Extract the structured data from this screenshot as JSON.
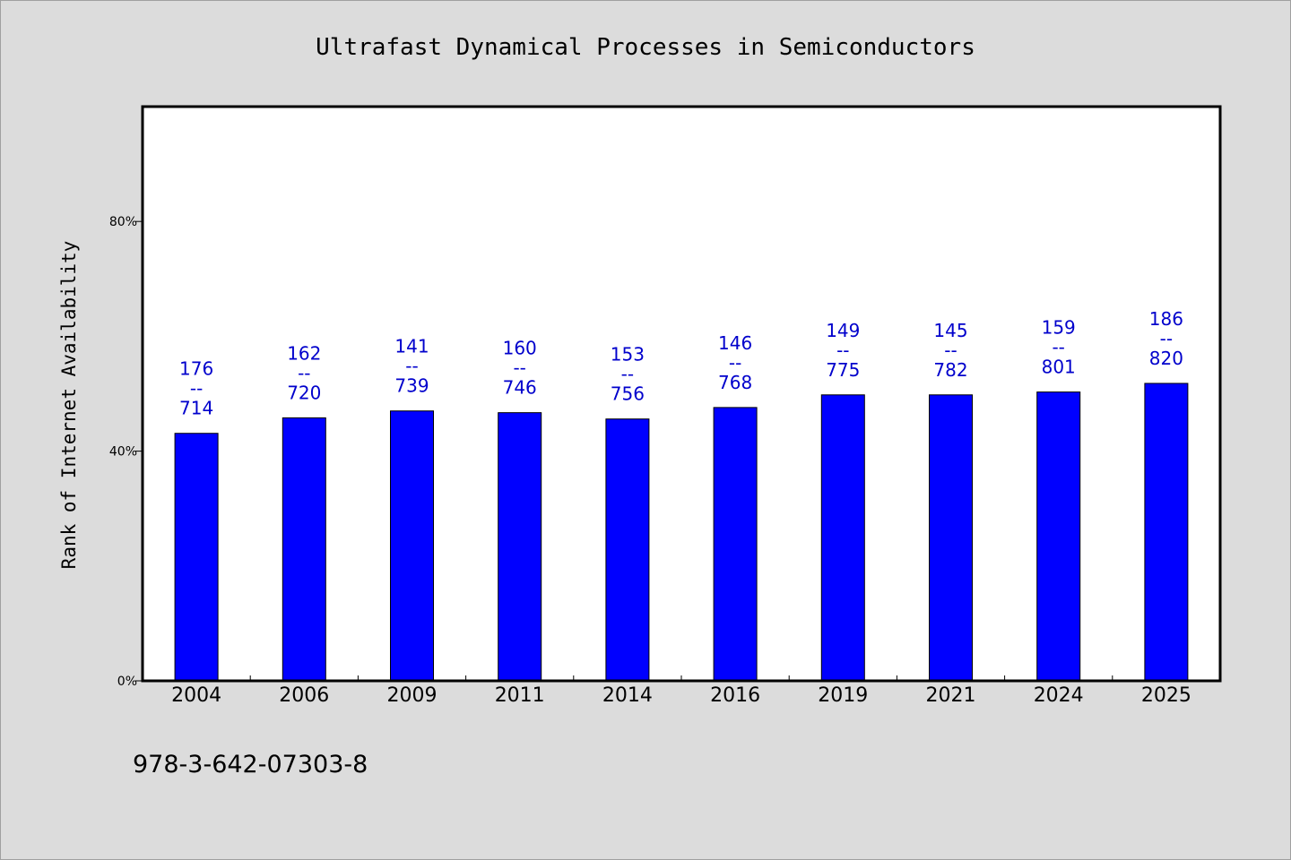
{
  "chart_data": {
    "type": "bar",
    "title": "Ultrafast Dynamical Processes in Semiconductors",
    "ylabel": "Rank of Internet Availability",
    "xlabel": "",
    "categories": [
      "2004",
      "2006",
      "2009",
      "2011",
      "2014",
      "2016",
      "2019",
      "2021",
      "2024",
      "2025"
    ],
    "values": [
      43.1,
      45.8,
      47.0,
      46.7,
      45.6,
      47.6,
      49.8,
      49.8,
      50.3,
      51.8
    ],
    "data_labels": [
      "176\n--\n714",
      "162\n--\n720",
      "141\n--\n739",
      "160\n--\n746",
      "153\n--\n756",
      "146\n--\n768",
      "149\n--\n775",
      "145\n--\n782",
      "159\n--\n801",
      "186\n--\n820"
    ],
    "ylim": [
      0,
      100
    ],
    "yticks": [
      0,
      40,
      80
    ],
    "ytick_labels": [
      "0%",
      "40%",
      "80%"
    ],
    "bar_color": "#0000ff",
    "label_color": "#0000cc",
    "background": "#dcdcdc",
    "plot_background": "#ffffff",
    "grid": false,
    "legend": "none"
  },
  "footer_text": "978-3-642-07303-8"
}
